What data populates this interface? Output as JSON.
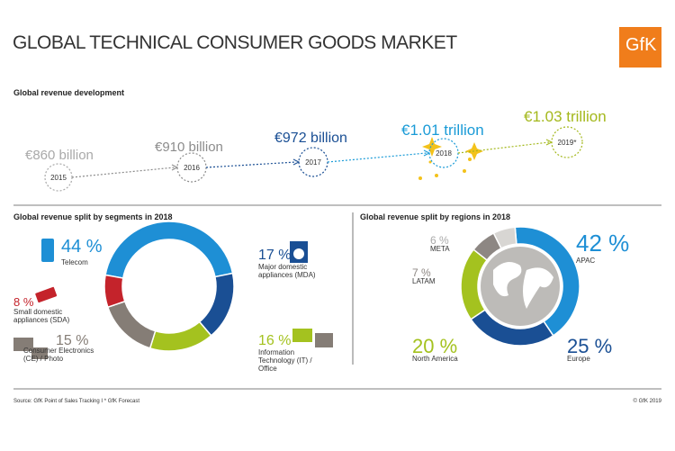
{
  "header": {
    "title": "GLOBAL TECHNICAL CONSUMER GOODS MARKET",
    "logo": "GfK"
  },
  "timeline": {
    "title": "Global revenue development",
    "items": [
      {
        "value": "€860 billion",
        "year": "2015",
        "color": "#a9a9a9"
      },
      {
        "value": "€910 billion",
        "year": "2016",
        "color": "#8c8c8c"
      },
      {
        "value": "€972 billion",
        "year": "2017",
        "color": "#1a4f94"
      },
      {
        "value": "€1.01 trillion",
        "year": "2018",
        "color": "#1a9bd7"
      },
      {
        "value": "€1.03 trillion",
        "year": "2019*",
        "color": "#a4b81c"
      }
    ]
  },
  "chart_data": [
    {
      "type": "pie",
      "title": "Global revenue split by segments in 2018",
      "categories": [
        "Telecom",
        "Major domestic appliances (MDA)",
        "Information Technology (IT) / Office",
        "Consumer Electronics (CE) / Photo",
        "Small domestic appliances (SDA)"
      ],
      "values": [
        44,
        17,
        16,
        15,
        8
      ],
      "value_labels": [
        "44 %",
        "17 %",
        "16 %",
        "15 %",
        "8 %"
      ],
      "colors": [
        "#1e8fd5",
        "#1a4f94",
        "#a4c21f",
        "#857d76",
        "#c4232b"
      ]
    },
    {
      "type": "pie",
      "title": "Global revenue split by regions in 2018",
      "categories": [
        "APAC",
        "Europe",
        "North America",
        "LATAM",
        "META"
      ],
      "values": [
        42,
        25,
        20,
        7,
        6
      ],
      "value_labels": [
        "42 %",
        "25 %",
        "20 %",
        "7 %",
        "6 %"
      ],
      "colors": [
        "#1e8fd5",
        "#1a4f94",
        "#a4c21f",
        "#8d8783",
        "#d8d6d3"
      ]
    }
  ],
  "footer": {
    "source": "Source: GfK Point of Sales Tracking I * GfK Forecast",
    "copyright": "© GfK 2019"
  }
}
